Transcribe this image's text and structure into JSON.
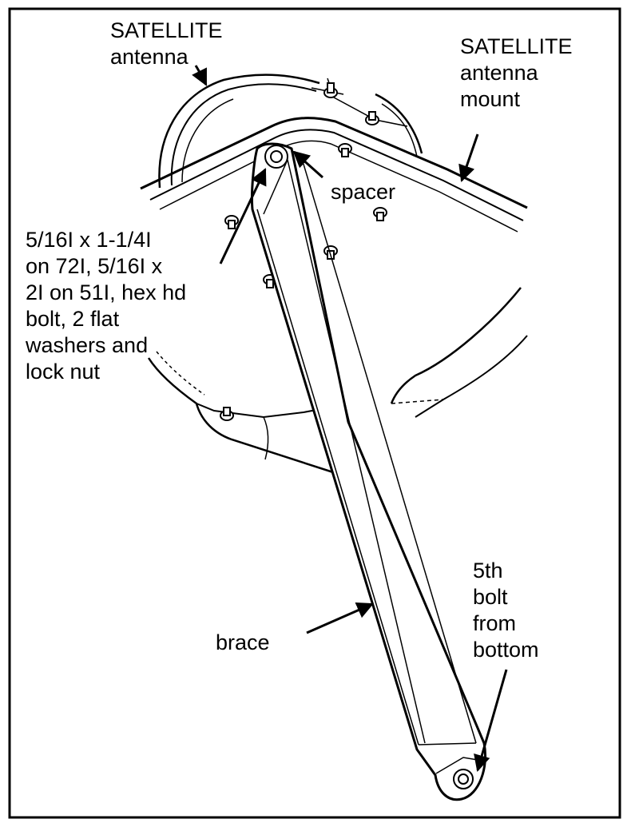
{
  "colors": {
    "ink": "#000000",
    "paper": "#ffffff"
  },
  "labels": {
    "antenna": [
      "SATELLITE",
      "antenna"
    ],
    "mount": [
      "SATELLITE",
      "antenna",
      "mount"
    ],
    "spacer": [
      "spacer"
    ],
    "bolt": [
      "5/16I x 1-1/4I",
      "on 72I, 5/16I x",
      "2I on 51I, hex hd",
      "bolt, 2 flat",
      "washers and",
      "lock nut"
    ],
    "brace": [
      "brace"
    ],
    "fifth_bolt": [
      "5th",
      "bolt",
      "from",
      "bottom"
    ]
  }
}
